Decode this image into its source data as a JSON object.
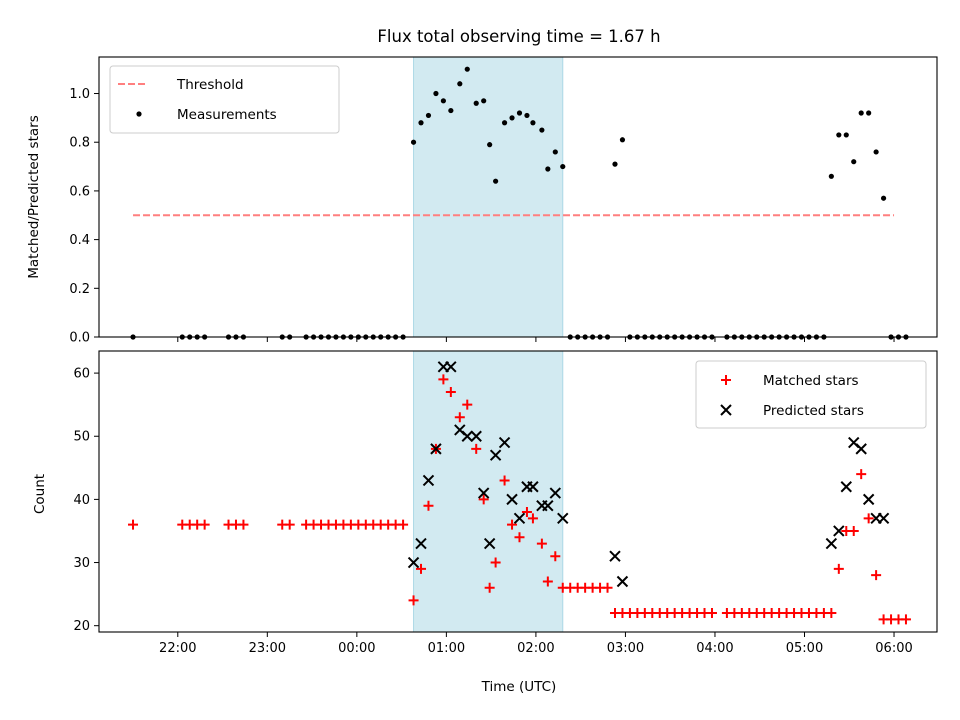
{
  "title": "Flux total observing time = 1.67 h",
  "colors": {
    "threshold": "#ff7f7f",
    "measurement": "#000000",
    "matched": "#ff0000",
    "predicted": "#000000",
    "highlight": "#add8e6"
  },
  "chart_data": [
    {
      "type": "scatter",
      "ylabel": "Matched/Predicted stars",
      "xlim_hours": [
        -2.88,
        6.48
      ],
      "ylim": [
        0,
        1.15
      ],
      "yticks": [
        "0.0",
        "0.2",
        "0.4",
        "0.6",
        "0.8",
        "1.0"
      ],
      "highlight_span": [
        "00:38",
        "02:18"
      ],
      "legend": {
        "placement": "upper left",
        "entries": [
          "Threshold",
          "Measurements"
        ]
      },
      "threshold": {
        "name": "Threshold",
        "value": 0.5,
        "x_start": "21:30",
        "x_end": "06:00"
      },
      "series": [
        {
          "name": "Measurements",
          "marker": "dot",
          "points": [
            [
              "21:30",
              0
            ],
            [
              "22:03",
              0
            ],
            [
              "22:08",
              0
            ],
            [
              "22:13",
              0
            ],
            [
              "22:18",
              0
            ],
            [
              "22:34",
              0
            ],
            [
              "22:39",
              0
            ],
            [
              "22:44",
              0
            ],
            [
              "23:10",
              0
            ],
            [
              "23:15",
              0
            ],
            [
              "23:26",
              0
            ],
            [
              "23:31",
              0
            ],
            [
              "23:36",
              0
            ],
            [
              "23:41",
              0
            ],
            [
              "23:46",
              0
            ],
            [
              "23:51",
              0
            ],
            [
              "23:56",
              0
            ],
            [
              "00:01",
              0
            ],
            [
              "00:06",
              0
            ],
            [
              "00:11",
              0
            ],
            [
              "00:16",
              0
            ],
            [
              "00:21",
              0
            ],
            [
              "00:26",
              0
            ],
            [
              "00:31",
              0
            ],
            [
              "00:38",
              0.8
            ],
            [
              "00:43",
              0.88
            ],
            [
              "00:48",
              0.91
            ],
            [
              "00:53",
              1.0
            ],
            [
              "00:58",
              0.97
            ],
            [
              "01:03",
              0.93
            ],
            [
              "01:09",
              1.04
            ],
            [
              "01:14",
              1.1
            ],
            [
              "01:20",
              0.96
            ],
            [
              "01:25",
              0.97
            ],
            [
              "01:29",
              0.79
            ],
            [
              "01:33",
              0.64
            ],
            [
              "01:39",
              0.88
            ],
            [
              "01:44",
              0.9
            ],
            [
              "01:49",
              0.92
            ],
            [
              "01:54",
              0.91
            ],
            [
              "01:58",
              0.88
            ],
            [
              "02:04",
              0.85
            ],
            [
              "02:08",
              0.69
            ],
            [
              "02:13",
              0.76
            ],
            [
              "02:18",
              0.7
            ],
            [
              "02:23",
              0
            ],
            [
              "02:28",
              0
            ],
            [
              "02:33",
              0
            ],
            [
              "02:38",
              0
            ],
            [
              "02:43",
              0
            ],
            [
              "02:48",
              0
            ],
            [
              "02:53",
              0.71
            ],
            [
              "02:58",
              0.81
            ],
            [
              "03:03",
              0
            ],
            [
              "03:08",
              0
            ],
            [
              "03:13",
              0
            ],
            [
              "03:18",
              0
            ],
            [
              "03:23",
              0
            ],
            [
              "03:28",
              0
            ],
            [
              "03:33",
              0
            ],
            [
              "03:38",
              0
            ],
            [
              "03:43",
              0
            ],
            [
              "03:48",
              0
            ],
            [
              "03:53",
              0
            ],
            [
              "03:58",
              0
            ],
            [
              "04:08",
              0
            ],
            [
              "04:13",
              0
            ],
            [
              "04:18",
              0
            ],
            [
              "04:23",
              0
            ],
            [
              "04:28",
              0
            ],
            [
              "04:33",
              0
            ],
            [
              "04:38",
              0
            ],
            [
              "04:43",
              0
            ],
            [
              "04:48",
              0
            ],
            [
              "04:53",
              0
            ],
            [
              "04:58",
              0
            ],
            [
              "05:03",
              0
            ],
            [
              "05:08",
              0
            ],
            [
              "05:13",
              0
            ],
            [
              "05:18",
              0.66
            ],
            [
              "05:23",
              0.83
            ],
            [
              "05:28",
              0.83
            ],
            [
              "05:33",
              0.72
            ],
            [
              "05:38",
              0.92
            ],
            [
              "05:43",
              0.92
            ],
            [
              "05:48",
              0.76
            ],
            [
              "05:53",
              0.57
            ],
            [
              "05:58",
              0
            ],
            [
              "06:03",
              0
            ],
            [
              "06:08",
              0
            ]
          ]
        }
      ]
    },
    {
      "type": "scatter",
      "xlabel": "Time (UTC)",
      "ylabel": "Count",
      "xlim_hours": [
        -2.88,
        6.48
      ],
      "ylim": [
        19,
        63.5
      ],
      "yticks": [
        "20",
        "30",
        "40",
        "50",
        "60"
      ],
      "xticks": [
        "22:00",
        "23:00",
        "00:00",
        "01:00",
        "02:00",
        "03:00",
        "04:00",
        "05:00",
        "06:00"
      ],
      "highlight_span": [
        "00:38",
        "02:18"
      ],
      "legend": {
        "placement": "upper right",
        "entries": [
          "Matched stars",
          "Predicted stars"
        ]
      },
      "series": [
        {
          "name": "Matched stars",
          "marker": "plus",
          "points": [
            [
              "21:30",
              36
            ],
            [
              "22:03",
              36
            ],
            [
              "22:08",
              36
            ],
            [
              "22:13",
              36
            ],
            [
              "22:18",
              36
            ],
            [
              "22:34",
              36
            ],
            [
              "22:39",
              36
            ],
            [
              "22:44",
              36
            ],
            [
              "23:10",
              36
            ],
            [
              "23:15",
              36
            ],
            [
              "23:26",
              36
            ],
            [
              "23:31",
              36
            ],
            [
              "23:36",
              36
            ],
            [
              "23:41",
              36
            ],
            [
              "23:46",
              36
            ],
            [
              "23:51",
              36
            ],
            [
              "23:56",
              36
            ],
            [
              "00:01",
              36
            ],
            [
              "00:06",
              36
            ],
            [
              "00:11",
              36
            ],
            [
              "00:16",
              36
            ],
            [
              "00:21",
              36
            ],
            [
              "00:26",
              36
            ],
            [
              "00:31",
              36
            ],
            [
              "00:38",
              24
            ],
            [
              "00:43",
              29
            ],
            [
              "00:48",
              39
            ],
            [
              "00:53",
              48
            ],
            [
              "00:58",
              59
            ],
            [
              "01:03",
              57
            ],
            [
              "01:09",
              53
            ],
            [
              "01:14",
              55
            ],
            [
              "01:20",
              48
            ],
            [
              "01:25",
              40
            ],
            [
              "01:29",
              26
            ],
            [
              "01:33",
              30
            ],
            [
              "01:39",
              43
            ],
            [
              "01:44",
              36
            ],
            [
              "01:49",
              34
            ],
            [
              "01:54",
              38
            ],
            [
              "01:58",
              37
            ],
            [
              "02:04",
              33
            ],
            [
              "02:08",
              27
            ],
            [
              "02:13",
              31
            ],
            [
              "02:18",
              26
            ],
            [
              "02:23",
              26
            ],
            [
              "02:28",
              26
            ],
            [
              "02:33",
              26
            ],
            [
              "02:38",
              26
            ],
            [
              "02:43",
              26
            ],
            [
              "02:48",
              26
            ],
            [
              "02:53",
              22
            ],
            [
              "02:58",
              22
            ],
            [
              "03:03",
              22
            ],
            [
              "03:08",
              22
            ],
            [
              "03:13",
              22
            ],
            [
              "03:18",
              22
            ],
            [
              "03:23",
              22
            ],
            [
              "03:28",
              22
            ],
            [
              "03:33",
              22
            ],
            [
              "03:38",
              22
            ],
            [
              "03:43",
              22
            ],
            [
              "03:48",
              22
            ],
            [
              "03:53",
              22
            ],
            [
              "03:58",
              22
            ],
            [
              "04:08",
              22
            ],
            [
              "04:13",
              22
            ],
            [
              "04:18",
              22
            ],
            [
              "04:23",
              22
            ],
            [
              "04:28",
              22
            ],
            [
              "04:33",
              22
            ],
            [
              "04:38",
              22
            ],
            [
              "04:43",
              22
            ],
            [
              "04:48",
              22
            ],
            [
              "04:53",
              22
            ],
            [
              "04:58",
              22
            ],
            [
              "05:03",
              22
            ],
            [
              "05:08",
              22
            ],
            [
              "05:13",
              22
            ],
            [
              "05:18",
              22
            ],
            [
              "05:23",
              29
            ],
            [
              "05:28",
              35
            ],
            [
              "05:33",
              35
            ],
            [
              "05:38",
              44
            ],
            [
              "05:43",
              37
            ],
            [
              "05:48",
              28
            ],
            [
              "05:53",
              21
            ],
            [
              "05:58",
              21
            ],
            [
              "06:03",
              21
            ],
            [
              "06:08",
              21
            ]
          ]
        },
        {
          "name": "Predicted stars",
          "marker": "x",
          "points": [
            [
              "00:38",
              30
            ],
            [
              "00:43",
              33
            ],
            [
              "00:48",
              43
            ],
            [
              "00:53",
              48
            ],
            [
              "00:58",
              61
            ],
            [
              "01:03",
              61
            ],
            [
              "01:09",
              51
            ],
            [
              "01:14",
              50
            ],
            [
              "01:20",
              50
            ],
            [
              "01:25",
              41
            ],
            [
              "01:29",
              33
            ],
            [
              "01:33",
              47
            ],
            [
              "01:39",
              49
            ],
            [
              "01:44",
              40
            ],
            [
              "01:49",
              37
            ],
            [
              "01:54",
              42
            ],
            [
              "01:58",
              42
            ],
            [
              "02:04",
              39
            ],
            [
              "02:08",
              39
            ],
            [
              "02:13",
              41
            ],
            [
              "02:18",
              37
            ],
            [
              "02:53",
              31
            ],
            [
              "02:58",
              27
            ],
            [
              "05:18",
              33
            ],
            [
              "05:23",
              35
            ],
            [
              "05:28",
              42
            ],
            [
              "05:33",
              49
            ],
            [
              "05:38",
              48
            ],
            [
              "05:43",
              40
            ],
            [
              "05:48",
              37
            ],
            [
              "05:53",
              37
            ]
          ]
        }
      ]
    }
  ]
}
